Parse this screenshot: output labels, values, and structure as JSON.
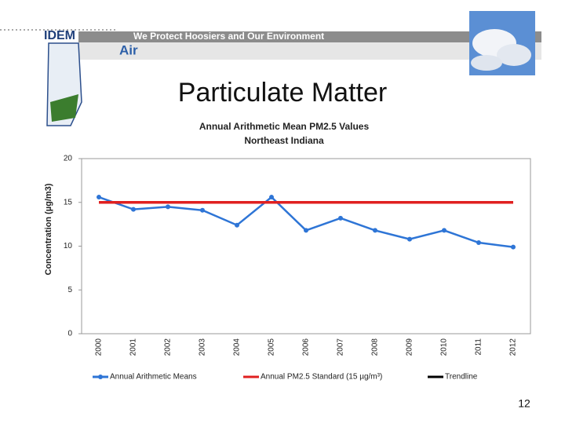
{
  "header": {
    "logo": "IDEM",
    "tagline": "We Protect Hoosiers and Our Environment",
    "section": "Air"
  },
  "slide": {
    "title": "Particulate Matter",
    "page_number": 12
  },
  "chart_data": {
    "type": "line",
    "title": "Annual Arithmetic Mean PM2.5 Values",
    "subtitle": "Northeast Indiana",
    "y_label": "Concentration (µg/m3)",
    "categories": [
      "2000",
      "2001",
      "2002",
      "2003",
      "2004",
      "2005",
      "2006",
      "2007",
      "2008",
      "2009",
      "2010",
      "2011",
      "2012"
    ],
    "series": [
      {
        "name": "Annual Arithmetic Means",
        "color": "#2e75d6",
        "marker": true,
        "values": [
          15.6,
          14.2,
          14.5,
          14.1,
          12.4,
          15.6,
          11.8,
          13.2,
          11.8,
          10.8,
          11.8,
          10.4,
          9.9
        ]
      },
      {
        "name": "Annual PM2.5 Standard (15 µg/m³)",
        "color": "#e02020",
        "marker": false,
        "values": [
          15,
          15,
          15,
          15,
          15,
          15,
          15,
          15,
          15,
          15,
          15,
          15,
          15
        ]
      },
      {
        "name": "Trendline",
        "color": "#000000",
        "marker": false,
        "values": [
          null,
          null,
          null,
          null,
          null,
          null,
          null,
          null,
          null,
          null,
          null,
          null,
          null
        ]
      }
    ],
    "ylim": [
      0,
      20
    ],
    "yticks": [
      0,
      5,
      10,
      15,
      20
    ],
    "grid": false,
    "legend": "bottom"
  }
}
